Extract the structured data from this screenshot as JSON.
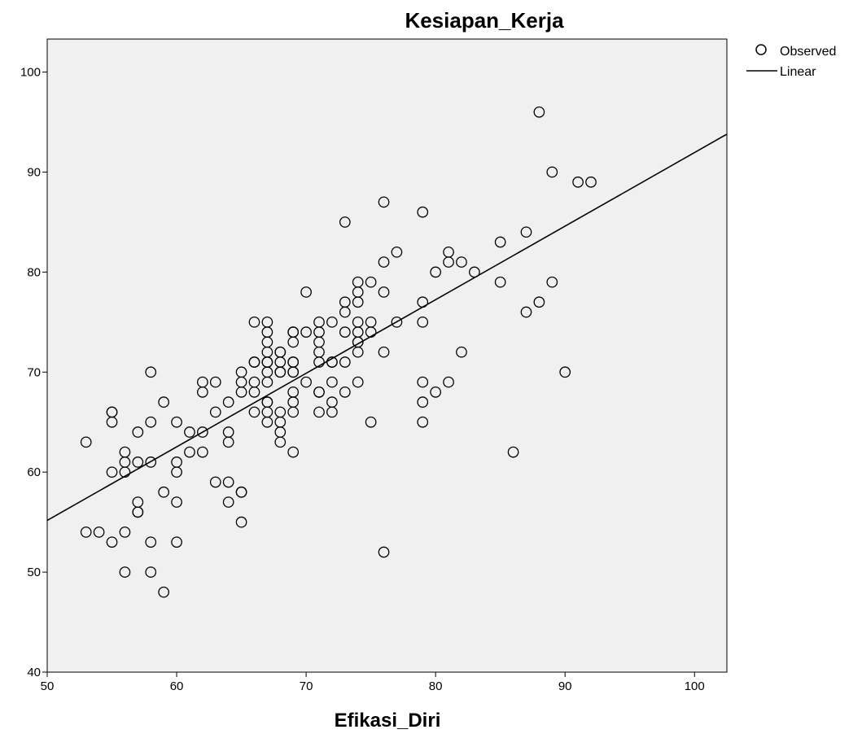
{
  "chart_data": {
    "type": "scatter",
    "title": "Kesiapan_Kerja",
    "xlabel": "Efikasi_Diri",
    "ylabel": "",
    "xlim": [
      50,
      102.5
    ],
    "ylim": [
      40,
      103.3
    ],
    "xticks": [
      "50",
      "60",
      "70",
      "80",
      "90",
      "100"
    ],
    "yticks": [
      "40",
      "50",
      "60",
      "70",
      "80",
      "90",
      "100"
    ],
    "grid": false,
    "legend_position": "top-right, outside plot",
    "legend": [
      "Observed",
      "Linear"
    ],
    "plot_background": "#f0f0f0",
    "series": [
      {
        "name": "Observed",
        "marker": "open-circle",
        "points": [
          [
            53,
            63
          ],
          [
            53,
            54
          ],
          [
            54,
            54
          ],
          [
            55,
            66
          ],
          [
            55,
            66
          ],
          [
            55,
            65
          ],
          [
            55,
            60
          ],
          [
            55,
            53
          ],
          [
            56,
            62
          ],
          [
            56,
            61
          ],
          [
            56,
            60
          ],
          [
            56,
            54
          ],
          [
            56,
            50
          ],
          [
            57,
            64
          ],
          [
            57,
            61
          ],
          [
            57,
            57
          ],
          [
            57,
            56
          ],
          [
            57,
            56
          ],
          [
            58,
            70
          ],
          [
            58,
            65
          ],
          [
            58,
            61
          ],
          [
            58,
            53
          ],
          [
            58,
            50
          ],
          [
            59,
            67
          ],
          [
            59,
            58
          ],
          [
            59,
            48
          ],
          [
            60,
            65
          ],
          [
            60,
            61
          ],
          [
            60,
            60
          ],
          [
            60,
            57
          ],
          [
            60,
            53
          ],
          [
            61,
            64
          ],
          [
            61,
            62
          ],
          [
            62,
            69
          ],
          [
            62,
            68
          ],
          [
            62,
            64
          ],
          [
            62,
            62
          ],
          [
            63,
            69
          ],
          [
            63,
            66
          ],
          [
            63,
            59
          ],
          [
            64,
            67
          ],
          [
            64,
            64
          ],
          [
            64,
            63
          ],
          [
            64,
            59
          ],
          [
            64,
            57
          ],
          [
            65,
            70
          ],
          [
            65,
            69
          ],
          [
            65,
            68
          ],
          [
            65,
            58
          ],
          [
            65,
            58
          ],
          [
            65,
            55
          ],
          [
            66,
            75
          ],
          [
            66,
            71
          ],
          [
            66,
            71
          ],
          [
            66,
            69
          ],
          [
            66,
            68
          ],
          [
            66,
            66
          ],
          [
            67,
            75
          ],
          [
            67,
            74
          ],
          [
            67,
            73
          ],
          [
            67,
            72
          ],
          [
            67,
            71
          ],
          [
            67,
            71
          ],
          [
            67,
            70
          ],
          [
            67,
            69
          ],
          [
            67,
            67
          ],
          [
            67,
            67
          ],
          [
            67,
            66
          ],
          [
            67,
            65
          ],
          [
            68,
            72
          ],
          [
            68,
            72
          ],
          [
            68,
            71
          ],
          [
            68,
            70
          ],
          [
            68,
            70
          ],
          [
            68,
            66
          ],
          [
            68,
            65
          ],
          [
            68,
            64
          ],
          [
            68,
            63
          ],
          [
            69,
            74
          ],
          [
            69,
            74
          ],
          [
            69,
            73
          ],
          [
            69,
            71
          ],
          [
            69,
            71
          ],
          [
            69,
            70
          ],
          [
            69,
            70
          ],
          [
            69,
            68
          ],
          [
            69,
            67
          ],
          [
            69,
            66
          ],
          [
            69,
            62
          ],
          [
            70,
            78
          ],
          [
            70,
            74
          ],
          [
            70,
            69
          ],
          [
            71,
            75
          ],
          [
            71,
            74
          ],
          [
            71,
            73
          ],
          [
            71,
            72
          ],
          [
            71,
            71
          ],
          [
            71,
            68
          ],
          [
            71,
            68
          ],
          [
            71,
            66
          ],
          [
            72,
            75
          ],
          [
            72,
            71
          ],
          [
            72,
            71
          ],
          [
            72,
            69
          ],
          [
            72,
            67
          ],
          [
            72,
            66
          ],
          [
            73,
            85
          ],
          [
            73,
            77
          ],
          [
            73,
            76
          ],
          [
            73,
            74
          ],
          [
            73,
            71
          ],
          [
            73,
            68
          ],
          [
            74,
            79
          ],
          [
            74,
            78
          ],
          [
            74,
            77
          ],
          [
            74,
            75
          ],
          [
            74,
            74
          ],
          [
            74,
            73
          ],
          [
            74,
            73
          ],
          [
            74,
            72
          ],
          [
            74,
            69
          ],
          [
            75,
            79
          ],
          [
            75,
            75
          ],
          [
            75,
            74
          ],
          [
            75,
            65
          ],
          [
            76,
            87
          ],
          [
            76,
            81
          ],
          [
            76,
            78
          ],
          [
            76,
            72
          ],
          [
            76,
            52
          ],
          [
            77,
            82
          ],
          [
            77,
            75
          ],
          [
            79,
            86
          ],
          [
            79,
            77
          ],
          [
            79,
            75
          ],
          [
            79,
            69
          ],
          [
            79,
            67
          ],
          [
            79,
            65
          ],
          [
            80,
            80
          ],
          [
            80,
            68
          ],
          [
            81,
            82
          ],
          [
            81,
            81
          ],
          [
            81,
            69
          ],
          [
            82,
            81
          ],
          [
            82,
            72
          ],
          [
            83,
            80
          ],
          [
            85,
            83
          ],
          [
            85,
            79
          ],
          [
            86,
            62
          ],
          [
            87,
            84
          ],
          [
            87,
            76
          ],
          [
            88,
            96
          ],
          [
            88,
            77
          ],
          [
            89,
            90
          ],
          [
            89,
            79
          ],
          [
            90,
            70
          ],
          [
            91,
            89
          ],
          [
            92,
            89
          ]
        ]
      },
      {
        "name": "Linear",
        "type": "line",
        "intercept": 18.39,
        "slope": 0.7356
      }
    ]
  }
}
